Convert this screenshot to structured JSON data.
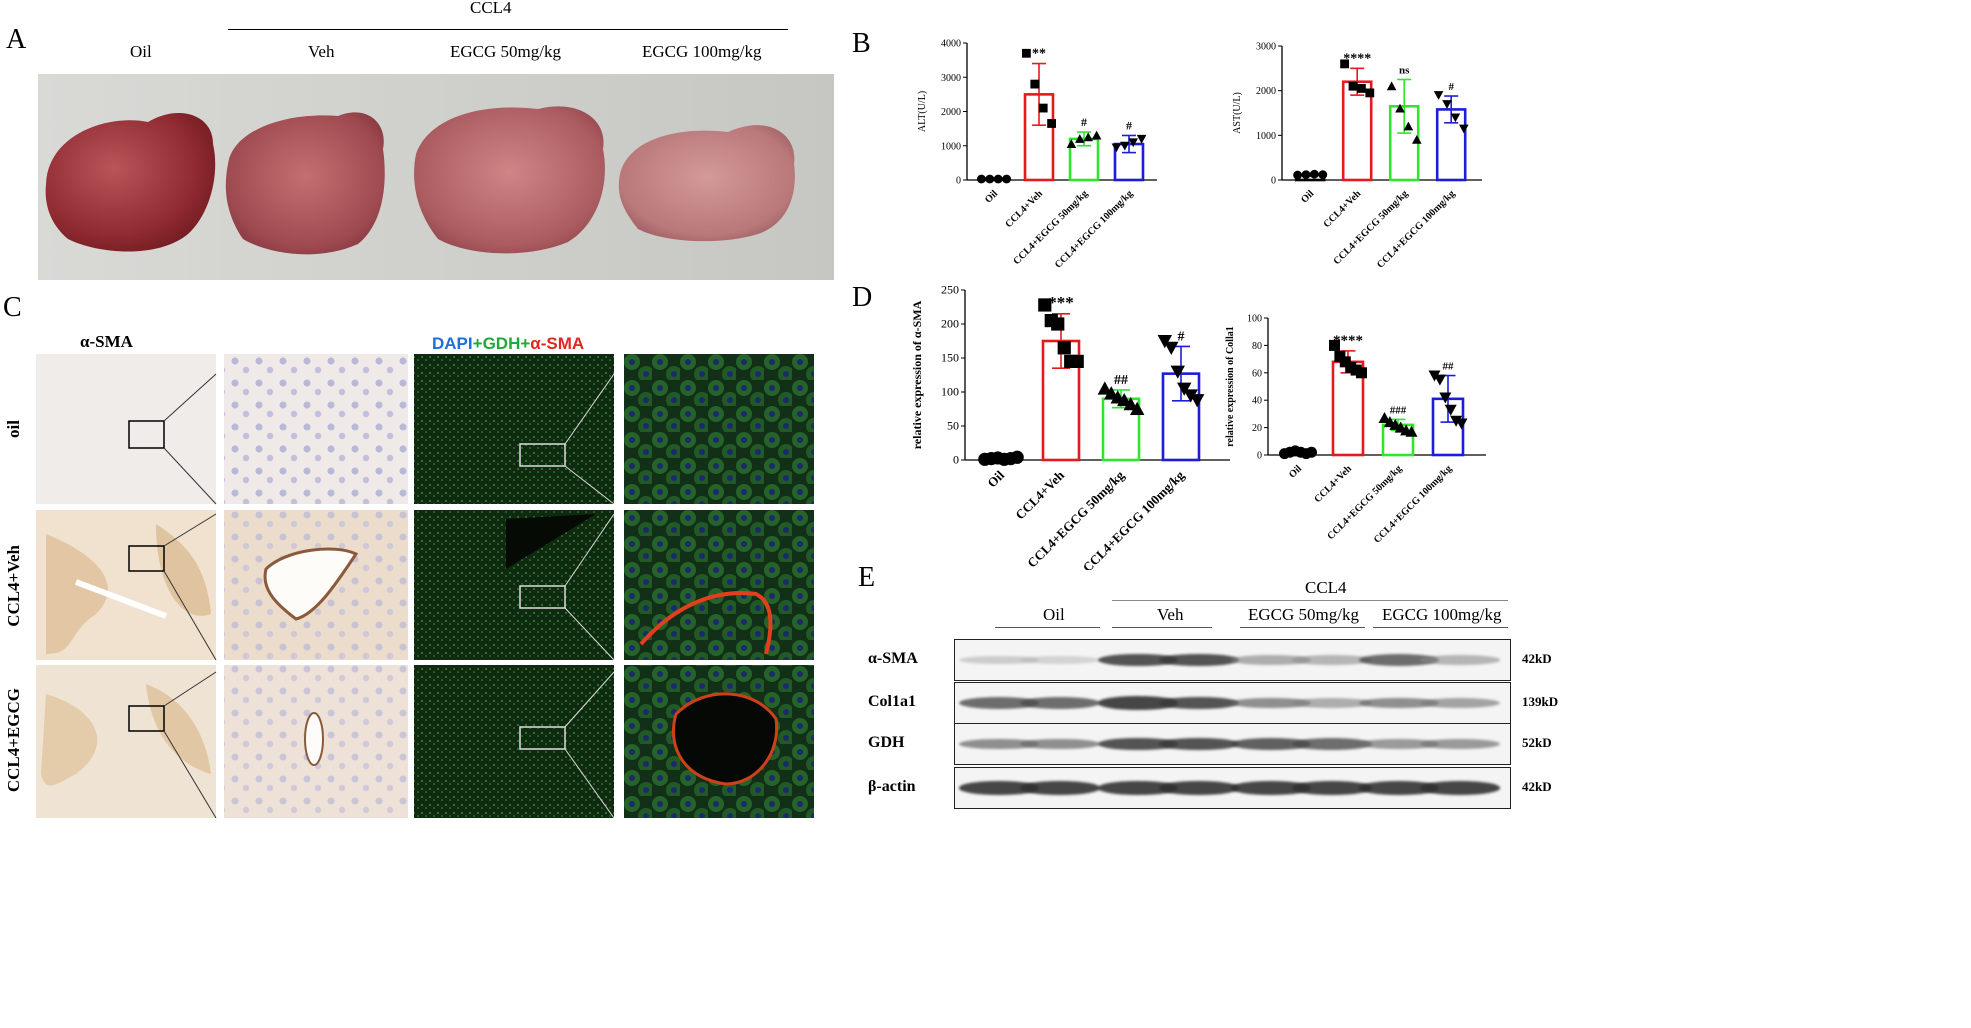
{
  "panels": {
    "A": "A",
    "B": "B",
    "C": "C",
    "D": "D",
    "E": "E"
  },
  "panelA": {
    "group_header": "CCL4",
    "groups": [
      "Oil",
      "Veh",
      "EGCG 50mg/kg",
      "EGCG 100mg/kg"
    ]
  },
  "panelC": {
    "left_header": "α-SMA",
    "right_header": {
      "dapi": "DAPI",
      "plus1": "+",
      "gdh": "GDH",
      "plus2": "+",
      "sma": "α-SMA"
    },
    "rows": [
      "oil",
      "CCL4+Veh",
      "CCL4+EGCG"
    ],
    "colors": {
      "dapi": "#1e6fd9",
      "gdh": "#1faa3a",
      "sma": "#e0261e",
      "ihc_bg": "#f2ede8",
      "if_bg": "#0e2210"
    }
  },
  "panelE": {
    "group_header": "CCL4",
    "groups": [
      "Oil",
      "Veh",
      "EGCG 50mg/kg",
      "EGCG 100mg/kg"
    ],
    "rows": [
      {
        "name": "α-SMA",
        "kd": "42kD",
        "intensity": [
          0.25,
          0.2,
          0.85,
          0.85,
          0.45,
          0.4,
          0.75,
          0.4
        ]
      },
      {
        "name": "Col1a1",
        "kd": "139kD",
        "intensity": [
          0.75,
          0.75,
          0.9,
          0.85,
          0.6,
          0.45,
          0.6,
          0.5
        ]
      },
      {
        "name": "GDH",
        "kd": "52kD",
        "intensity": [
          0.6,
          0.6,
          0.85,
          0.85,
          0.8,
          0.75,
          0.55,
          0.55
        ]
      },
      {
        "name": "β-actin",
        "kd": "42kD",
        "intensity": [
          0.9,
          0.9,
          0.9,
          0.9,
          0.9,
          0.9,
          0.9,
          0.9
        ]
      }
    ]
  },
  "chart_data": [
    {
      "id": "ALT",
      "type": "bar",
      "ylabel": "ALT(U/L)",
      "ylim": [
        0,
        4000
      ],
      "yticks": [
        "0",
        "1000",
        "2000",
        "3000",
        "4000"
      ],
      "categories": [
        "Oil",
        "CCL4+Veh",
        "CCL4+EGCG 50mg/kg",
        "CCL4+EGCG 100mg/kg"
      ],
      "values": [
        30,
        2500,
        1200,
        1050
      ],
      "errors": [
        15,
        900,
        200,
        250
      ],
      "annotations": [
        "",
        "**",
        "#",
        "#"
      ],
      "points": [
        [
          30,
          30,
          30,
          30
        ],
        [
          3700,
          2800,
          2100,
          1650
        ],
        [
          1050,
          1200,
          1250,
          1300
        ],
        [
          950,
          1000,
          1100,
          1200
        ]
      ],
      "colors": [
        "#000000",
        "#e41a1c",
        "#2ee62e",
        "#1c1cd9"
      ],
      "markers": [
        "circle",
        "square",
        "triangle",
        "triangle-down"
      ]
    },
    {
      "id": "AST",
      "type": "bar",
      "ylabel": "AST(U/L)",
      "ylim": [
        0,
        3000
      ],
      "yticks": [
        "0",
        "1000",
        "2000",
        "3000"
      ],
      "categories": [
        "Oil",
        "CCL4+Veh",
        "CCL4+EGCG 50mg/kg",
        "CCL4+EGCG 100mg/kg"
      ],
      "values": [
        120,
        2200,
        1650,
        1580
      ],
      "errors": [
        30,
        300,
        600,
        300
      ],
      "annotations": [
        "",
        "****",
        "ns",
        "#"
      ],
      "points": [
        [
          110,
          120,
          130,
          120
        ],
        [
          2600,
          2100,
          2050,
          1950
        ],
        [
          2100,
          1600,
          1200,
          900
        ],
        [
          1900,
          1700,
          1400,
          1150
        ]
      ],
      "colors": [
        "#000000",
        "#e41a1c",
        "#2ee62e",
        "#1c1cd9"
      ],
      "markers": [
        "circle",
        "square",
        "triangle",
        "triangle-down"
      ]
    },
    {
      "id": "SMA",
      "type": "bar",
      "ylabel": "relative expression of α-SMA",
      "ylim": [
        0,
        250
      ],
      "yticks": [
        "0",
        "50",
        "100",
        "150",
        "200",
        "250"
      ],
      "categories": [
        "Oil",
        "CCL4+Veh",
        "CCL4+EGCG 50mg/kg",
        "CCL4+EGCG 100mg/kg"
      ],
      "values": [
        2,
        175,
        90,
        127
      ],
      "errors": [
        1,
        40,
        13,
        40
      ],
      "annotations": [
        "",
        "***",
        "##",
        "#"
      ],
      "points": [
        [
          1,
          2,
          3,
          1,
          2,
          4
        ],
        [
          228,
          205,
          200,
          165,
          145,
          145
        ],
        [
          105,
          98,
          92,
          88,
          82,
          75
        ],
        [
          175,
          165,
          130,
          105,
          95,
          88
        ]
      ],
      "colors": [
        "#000000",
        "#e41a1c",
        "#2ee62e",
        "#1c1cd9"
      ],
      "markers": [
        "circle",
        "square",
        "triangle",
        "triangle-down"
      ]
    },
    {
      "id": "COL",
      "type": "bar",
      "ylabel": "relative expression of Colla1",
      "ylim": [
        0,
        100
      ],
      "yticks": [
        "0",
        "20",
        "40",
        "60",
        "80",
        "100"
      ],
      "categories": [
        "Oil",
        "CCL4+Veh",
        "CCL4+EGCG 50mg/kg",
        "CCL4+EGCG 100mg/kg"
      ],
      "values": [
        2,
        68,
        22,
        41
      ],
      "errors": [
        1,
        8,
        4,
        17
      ],
      "annotations": [
        "",
        "****",
        "###",
        "##"
      ],
      "points": [
        [
          1,
          2,
          3,
          2,
          1,
          2
        ],
        [
          80,
          72,
          68,
          64,
          62,
          60
        ],
        [
          27,
          24,
          22,
          20,
          18,
          17
        ],
        [
          58,
          55,
          42,
          33,
          25,
          23
        ]
      ],
      "colors": [
        "#000000",
        "#e41a1c",
        "#2ee62e",
        "#1c1cd9"
      ],
      "markers": [
        "circle",
        "square",
        "triangle",
        "triangle-down"
      ]
    }
  ]
}
